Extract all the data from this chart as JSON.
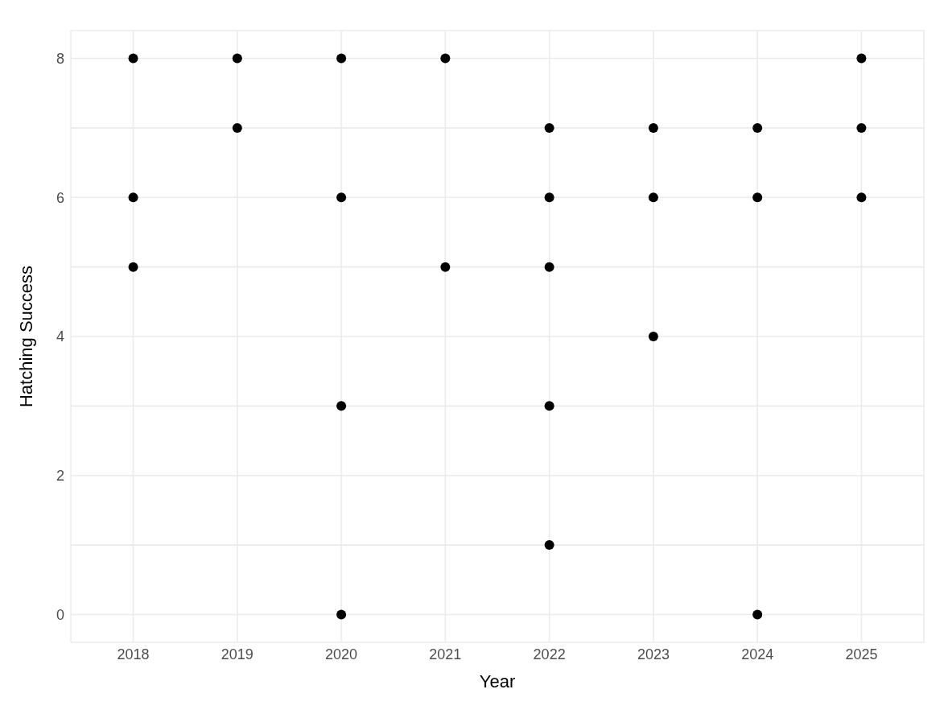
{
  "chart_data": {
    "type": "scatter",
    "xlabel": "Year",
    "ylabel": "Hatching Success",
    "x": [
      2018,
      2018,
      2018,
      2019,
      2019,
      2020,
      2020,
      2020,
      2020,
      2021,
      2021,
      2022,
      2022,
      2022,
      2022,
      2022,
      2023,
      2023,
      2023,
      2024,
      2024,
      2024,
      2025,
      2025,
      2025
    ],
    "series": [
      {
        "color": "#000000",
        "values": [
          8,
          6,
          5,
          8,
          7,
          8,
          6,
          3,
          0,
          8,
          5,
          7,
          6,
          5,
          3,
          1,
          7,
          6,
          4,
          7,
          6,
          0,
          8,
          7,
          6
        ]
      }
    ],
    "xlim": [
      2017.4,
      2025.6
    ],
    "xticks": [
      2018,
      2019,
      2020,
      2021,
      2022,
      2023,
      2024,
      2025
    ],
    "ylim": [
      -0.4,
      8.4
    ],
    "yticks": [
      0,
      {
        "value": 1,
        "label": null
      },
      2,
      {
        "value": 3,
        "label": null
      },
      4,
      {
        "value": 5,
        "label": null
      },
      6,
      {
        "value": 7,
        "label": null
      },
      8
    ],
    "grid": true,
    "legend": false,
    "marker": "circle"
  }
}
